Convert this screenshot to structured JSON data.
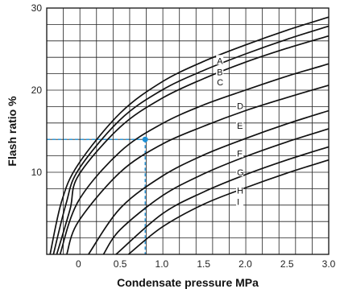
{
  "chart_data": {
    "type": "line",
    "title": "",
    "xlabel": "Condensate pressure MPa",
    "ylabel": "Flash ratio %",
    "xlim": [
      -0.38,
      3.0
    ],
    "ylim": [
      0,
      30
    ],
    "x_ticks": [
      "0",
      "0.5",
      "1.0",
      "1.5",
      "2.0",
      "2.5",
      "3.0"
    ],
    "y_ticks": [
      "10",
      "20",
      "30"
    ],
    "grid": true,
    "series": [
      {
        "name": "A",
        "label_at": [
          1.66,
          23.6
        ],
        "points": [
          [
            -0.34,
            0
          ],
          [
            -0.2,
            6.5
          ],
          [
            0,
            11
          ],
          [
            0.5,
            17.2
          ],
          [
            1.0,
            21.0
          ],
          [
            1.5,
            23.5
          ],
          [
            2.0,
            25.5
          ],
          [
            2.5,
            27.3
          ],
          [
            3.0,
            28.9
          ]
        ]
      },
      {
        "name": "B",
        "label_at": [
          1.66,
          22.2
        ],
        "points": [
          [
            -0.3,
            0
          ],
          [
            -0.15,
            6.1
          ],
          [
            0,
            10.3
          ],
          [
            0.5,
            16.4
          ],
          [
            1.0,
            20.0
          ],
          [
            1.5,
            22.4
          ],
          [
            2.0,
            24.4
          ],
          [
            2.5,
            26.2
          ],
          [
            3.0,
            27.8
          ]
        ]
      },
      {
        "name": "C",
        "label_at": [
          1.66,
          21.0
        ],
        "points": [
          [
            -0.26,
            0
          ],
          [
            -0.1,
            5.5
          ],
          [
            0,
            9.6
          ],
          [
            0.5,
            15.5
          ],
          [
            1.0,
            19.0
          ],
          [
            1.5,
            21.4
          ],
          [
            2.0,
            23.4
          ],
          [
            2.5,
            25.1
          ],
          [
            3.0,
            26.6
          ]
        ]
      },
      {
        "name": "D",
        "label_at": [
          1.9,
          18.1
        ],
        "points": [
          [
            -0.22,
            0
          ],
          [
            0,
            6.5
          ],
          [
            0.5,
            12.5
          ],
          [
            1.0,
            15.9
          ],
          [
            1.5,
            18.2
          ],
          [
            2.0,
            20.0
          ],
          [
            2.5,
            21.7
          ],
          [
            3.0,
            23.2
          ]
        ]
      },
      {
        "name": "E",
        "label_at": [
          1.9,
          15.7
        ],
        "points": [
          [
            -0.14,
            0
          ],
          [
            0,
            4.0
          ],
          [
            0.5,
            10.0
          ],
          [
            1.0,
            13.4
          ],
          [
            1.5,
            15.6
          ],
          [
            2.0,
            17.5
          ],
          [
            2.5,
            19.1
          ],
          [
            3.0,
            20.6
          ]
        ]
      },
      {
        "name": "F",
        "label_at": [
          1.9,
          12.3
        ],
        "points": [
          [
            0.12,
            0
          ],
          [
            0.5,
            5.6
          ],
          [
            1.0,
            9.5
          ],
          [
            1.5,
            12.1
          ],
          [
            2.0,
            14.1
          ],
          [
            2.5,
            15.9
          ],
          [
            3.0,
            17.5
          ]
        ]
      },
      {
        "name": "G",
        "label_at": [
          1.9,
          10.0
        ],
        "points": [
          [
            0.3,
            0
          ],
          [
            0.5,
            3.0
          ],
          [
            1.0,
            7.1
          ],
          [
            1.5,
            9.8
          ],
          [
            2.0,
            11.9
          ],
          [
            2.5,
            13.7
          ],
          [
            3.0,
            15.3
          ]
        ]
      },
      {
        "name": "H",
        "label_at": [
          1.9,
          7.8
        ],
        "points": [
          [
            0.45,
            0
          ],
          [
            1.0,
            4.9
          ],
          [
            1.5,
            7.6
          ],
          [
            2.0,
            9.7
          ],
          [
            2.5,
            11.5
          ],
          [
            3.0,
            13.1
          ]
        ]
      },
      {
        "name": "I",
        "label_at": [
          1.9,
          6.4
        ],
        "points": [
          [
            0.6,
            0
          ],
          [
            1.0,
            3.3
          ],
          [
            1.5,
            6.1
          ],
          [
            2.0,
            8.1
          ],
          [
            2.5,
            9.9
          ],
          [
            3.0,
            11.5
          ]
        ]
      }
    ],
    "example": {
      "x": 0.8,
      "y": 14,
      "color": "#1e90d6"
    },
    "line_color": "#111111",
    "grid_color": "#222222"
  }
}
